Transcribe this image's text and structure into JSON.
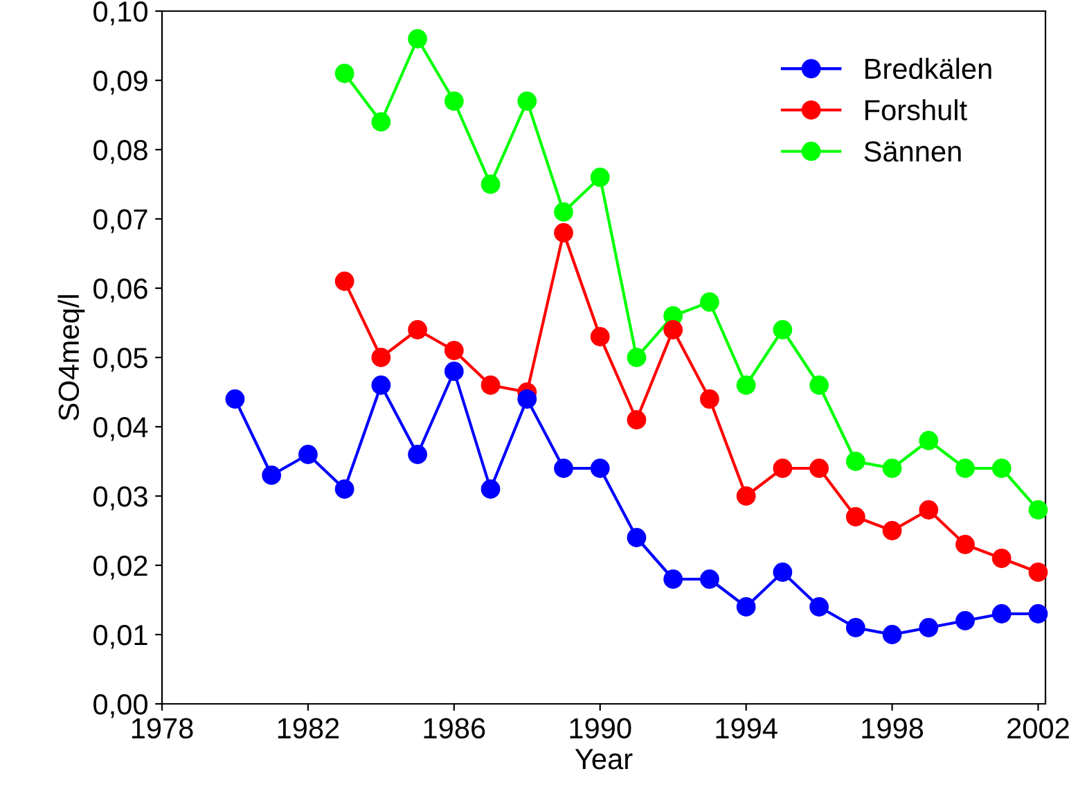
{
  "chart_data": {
    "type": "line",
    "xlabel": "Year",
    "ylabel": "SO4meq/l",
    "x": [
      1980,
      1981,
      1982,
      1983,
      1984,
      1985,
      1986,
      1987,
      1988,
      1989,
      1990,
      1991,
      1992,
      1993,
      1994,
      1995,
      1996,
      1997,
      1998,
      1999,
      2000,
      2001,
      2002
    ],
    "series": [
      {
        "name": "Bredkälen",
        "color": "#0000ff",
        "values": [
          0.044,
          0.033,
          0.036,
          0.031,
          0.046,
          0.036,
          0.048,
          0.031,
          0.044,
          0.034,
          0.034,
          0.024,
          0.018,
          0.018,
          0.014,
          0.019,
          0.014,
          0.011,
          0.01,
          0.011,
          0.012,
          0.013,
          0.013
        ]
      },
      {
        "name": "Forshult",
        "color": "#ff0000",
        "values": [
          null,
          null,
          null,
          0.061,
          0.05,
          0.054,
          0.051,
          0.046,
          0.045,
          0.068,
          0.053,
          0.041,
          0.054,
          0.044,
          0.03,
          0.034,
          0.034,
          0.027,
          0.025,
          0.028,
          0.023,
          0.021,
          0.019
        ]
      },
      {
        "name": "Sännen",
        "color": "#00ff00",
        "values": [
          null,
          null,
          null,
          0.091,
          0.084,
          0.096,
          0.087,
          0.075,
          0.087,
          0.071,
          0.076,
          0.05,
          0.056,
          0.058,
          0.046,
          0.054,
          0.046,
          0.035,
          0.034,
          0.038,
          0.034,
          0.034,
          0.028
        ]
      }
    ],
    "xlim": [
      1978,
      2002.2
    ],
    "xticks": [
      1978,
      1982,
      1986,
      1990,
      1994,
      1998,
      2002
    ],
    "ylim": [
      0,
      0.1
    ],
    "yticks": [
      {
        "value": 0,
        "label": "0,00"
      },
      {
        "value": 0.01,
        "label": "0,01"
      },
      {
        "value": 0.02,
        "label": "0,02"
      },
      {
        "value": 0.03,
        "label": "0,03"
      },
      {
        "value": 0.04,
        "label": "0,04"
      },
      {
        "value": 0.05,
        "label": "0,05"
      },
      {
        "value": 0.06,
        "label": "0,06"
      },
      {
        "value": 0.07,
        "label": "0,07"
      },
      {
        "value": 0.08,
        "label": "0,08"
      },
      {
        "value": 0.09,
        "label": "0,09"
      },
      {
        "value": 0.1,
        "label": "0,10"
      }
    ],
    "grid": false,
    "legend": "top right",
    "marker": "circle",
    "line_style": "solid"
  }
}
